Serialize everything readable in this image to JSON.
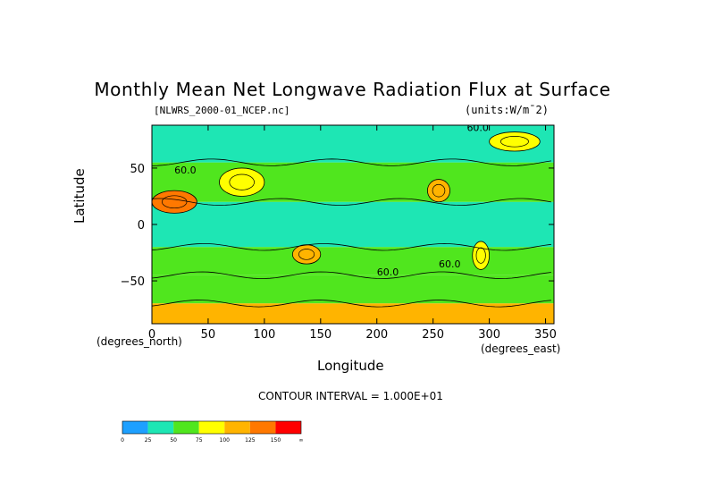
{
  "chart_data": {
    "type": "heatmap",
    "title": "Monthly Mean Net Longwave Radiation Flux at Surface",
    "source_label": "[NLWRS_2000-01_NCEP.nc]",
    "units_label": "(units:W/m¯2)",
    "xlabel": "Longitude",
    "ylabel": "Latitude",
    "x_units": "(degrees_east)",
    "y_units": "(degrees_north)",
    "xlim": [
      0,
      357.5
    ],
    "ylim": [
      -88,
      88
    ],
    "x_ticks": [
      0,
      50,
      100,
      150,
      200,
      250,
      300,
      350
    ],
    "y_ticks": [
      50,
      0,
      -50
    ],
    "contour_interval": "CONTOUR INTERVAL = 1.000E+01",
    "contour_labels": [
      "60.0",
      "60.0",
      "60.0",
      "60.0"
    ],
    "colorbar": {
      "levels": [
        "0",
        "25",
        "50",
        "75",
        "100",
        "125",
        "150",
        "∞"
      ],
      "colors": [
        "#1ea0ff",
        "#1ee6b4",
        "#50e61e",
        "#ffff00",
        "#ffb400",
        "#ff7800",
        "#ff0000"
      ]
    },
    "field_regions": [
      {
        "band": "tropics",
        "lat": [
          -20,
          20
        ],
        "value": 40
      },
      {
        "band": "subtropics_south",
        "lat": [
          -45,
          -20
        ],
        "value": 55
      },
      {
        "band": "subtropics_north",
        "lat": [
          20,
          55
        ],
        "value": 60
      },
      {
        "band": "high_north",
        "lat": [
          55,
          88
        ],
        "value": 45
      },
      {
        "band": "southern_ocean",
        "lat": [
          -70,
          -45
        ],
        "value": 60
      },
      {
        "band": "antarctic",
        "lat": [
          -88,
          -70
        ],
        "value": 120
      },
      {
        "feature": "sahara",
        "lon": [
          0,
          40
        ],
        "lat": [
          10,
          30
        ],
        "value": 140
      },
      {
        "feature": "australia",
        "lon": [
          125,
          150
        ],
        "lat": [
          -35,
          -18
        ],
        "value": 110
      },
      {
        "feature": "southwest_us",
        "lon": [
          245,
          265
        ],
        "lat": [
          20,
          40
        ],
        "value": 100
      },
      {
        "feature": "andes",
        "lon": [
          285,
          300
        ],
        "lat": [
          -40,
          -15
        ],
        "value": 90
      },
      {
        "feature": "central_asia",
        "lon": [
          60,
          100
        ],
        "lat": [
          25,
          50
        ],
        "value": 80
      },
      {
        "feature": "greenland",
        "lon": [
          300,
          345
        ],
        "lat": [
          65,
          82
        ],
        "value": 90
      }
    ]
  }
}
